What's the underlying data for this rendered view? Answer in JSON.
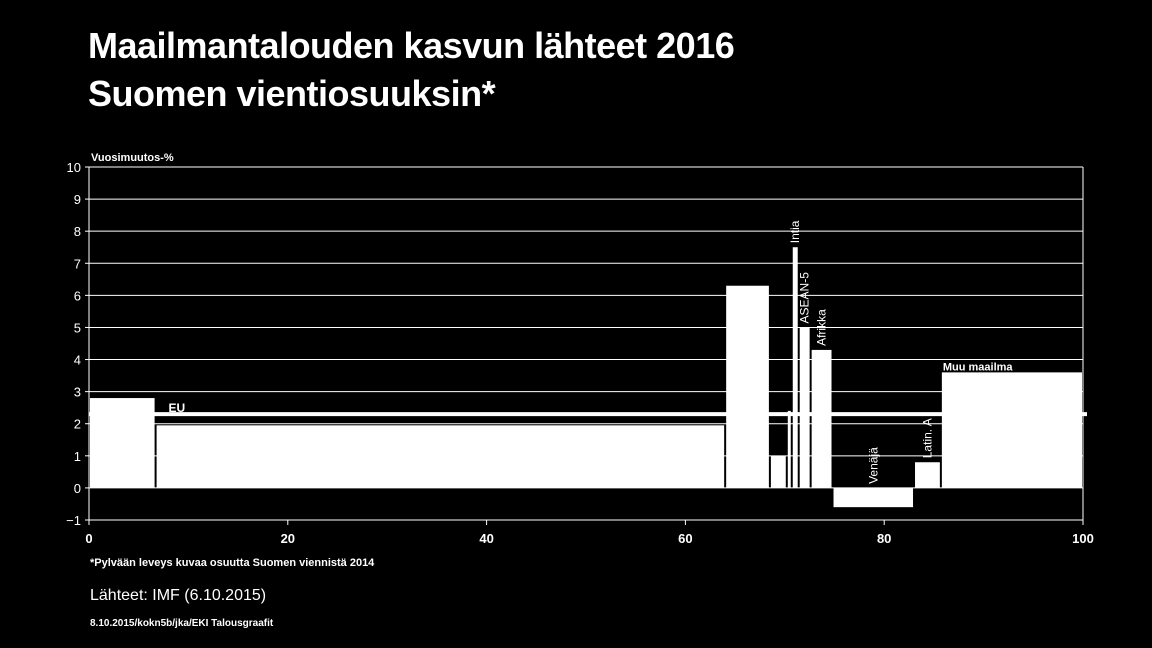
{
  "page": {
    "title_line1": "Maailmantalouden kasvun lähteet 2016",
    "title_line2": "Suomen vientiosuuksin*",
    "note": "*Pylvään leveys kuvaa osuutta Suomen viennistä 2014",
    "source": "Lähteet: IMF (6.10.2015)",
    "footer": "8.10.2015/kokn5b/jka/EKI Talousgraafit"
  },
  "chart_data": {
    "type": "bar",
    "variable_width": true,
    "ylabel": "Vuosimuutos-%",
    "xlim": [
      0,
      100
    ],
    "ylim": [
      -1,
      10
    ],
    "xticks": [
      0,
      20,
      40,
      60,
      80,
      100
    ],
    "yticks": [
      -1,
      0,
      1,
      2,
      3,
      4,
      5,
      6,
      7,
      8,
      9,
      10
    ],
    "grid": true,
    "colors": {
      "background": "#000000",
      "bars": "#ffffff",
      "grid": "#ffffff"
    },
    "reference_line": {
      "label": "EU",
      "value": 2.3
    },
    "bars": [
      {
        "label": "",
        "x_start": 0,
        "x_end": 6.7,
        "value": 2.8
      },
      {
        "label": "",
        "x_start": 6.7,
        "x_end": 64.0,
        "value": 1.95
      },
      {
        "label": "",
        "x_start": 64.0,
        "x_end": 68.5,
        "value": 6.3
      },
      {
        "label": "",
        "x_start": 68.5,
        "x_end": 70.2,
        "value": 1.0
      },
      {
        "label": "",
        "x_start": 70.2,
        "x_end": 70.7,
        "value": 2.4
      },
      {
        "label": "Intia",
        "x_start": 70.7,
        "x_end": 71.4,
        "value": 7.5
      },
      {
        "label": "ASEAN-5",
        "x_start": 71.4,
        "x_end": 72.6,
        "value": 5.0
      },
      {
        "label": "Afrikka",
        "x_start": 72.6,
        "x_end": 74.8,
        "value": 4.3
      },
      {
        "label": "Venäjä",
        "x_start": 74.8,
        "x_end": 83.0,
        "value": -0.6
      },
      {
        "label": "Latin. A",
        "x_start": 83.0,
        "x_end": 85.7,
        "value": 0.8
      },
      {
        "label": "Muu maailma",
        "x_start": 85.7,
        "x_end": 100.0,
        "value": 3.6
      }
    ]
  }
}
